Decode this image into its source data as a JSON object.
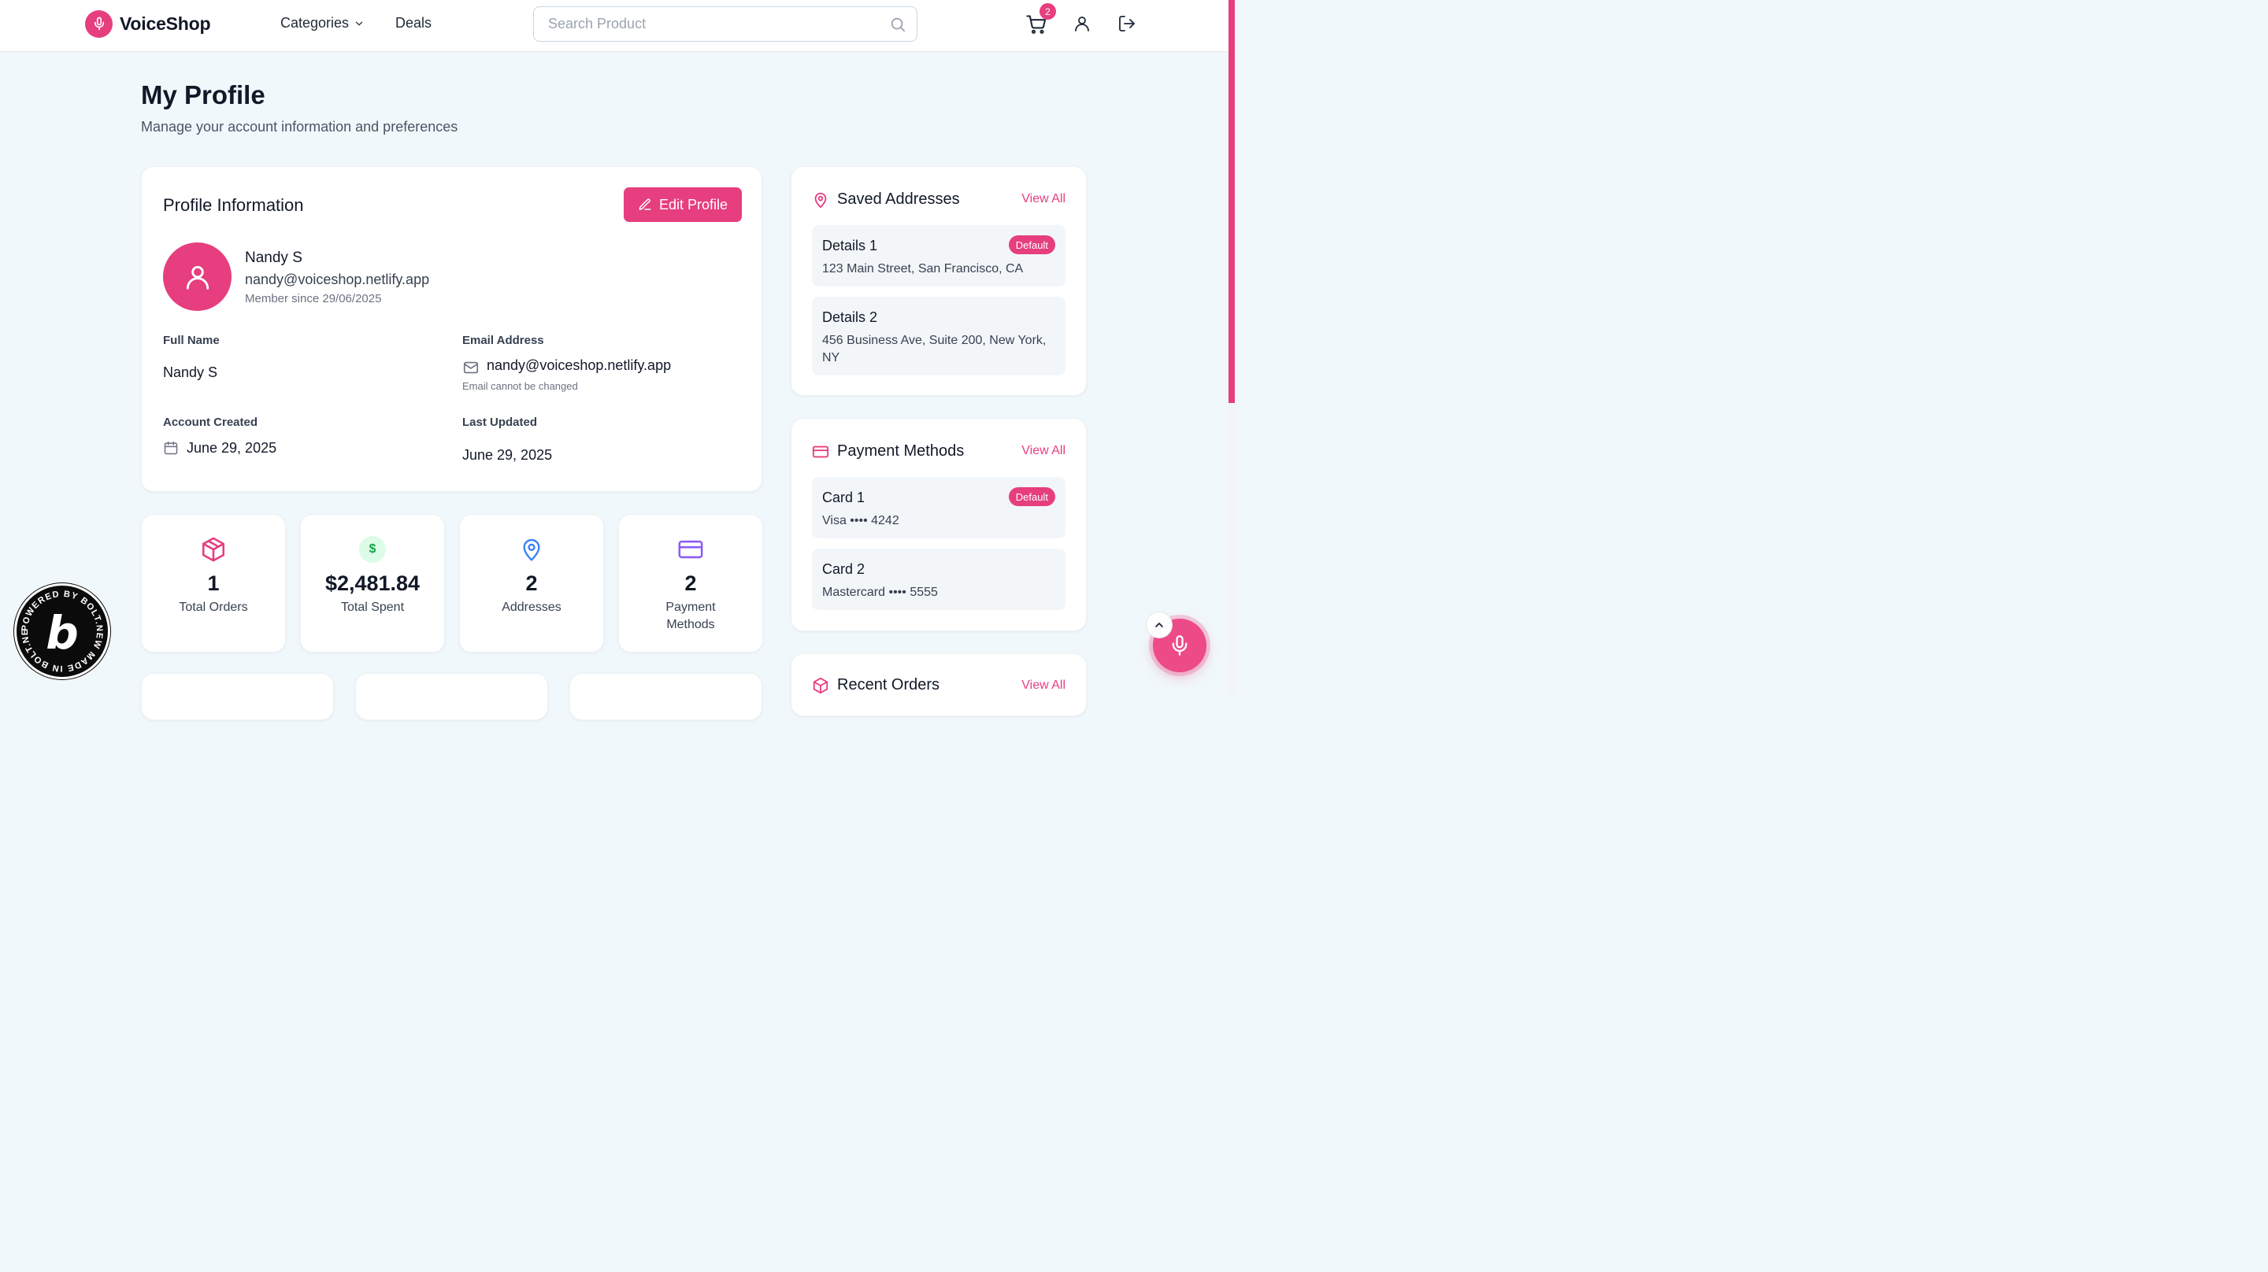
{
  "header": {
    "brand": "VoiceShop",
    "categories_label": "Categories",
    "deals_label": "Deals",
    "search_placeholder": "Search Product",
    "cart_count": "2"
  },
  "page": {
    "title": "My Profile",
    "subtitle": "Manage your account information and preferences"
  },
  "profile": {
    "section_title": "Profile Information",
    "edit_label": "Edit Profile",
    "name": "Nandy S",
    "email": "nandy@voiceshop.netlify.app",
    "member_since": "Member since 29/06/2025",
    "fields": {
      "full_name_label": "Full Name",
      "full_name_value": "Nandy S",
      "email_label": "Email Address",
      "email_value": "nandy@voiceshop.netlify.app",
      "email_note": "Email cannot be changed",
      "created_label": "Account Created",
      "created_value": "June 29, 2025",
      "updated_label": "Last Updated",
      "updated_value": "June 29, 2025"
    }
  },
  "stats": [
    {
      "value": "1",
      "label": "Total Orders",
      "icon": "box-icon"
    },
    {
      "value": "$2,481.84",
      "label": "Total Spent",
      "icon": "dollar-icon"
    },
    {
      "value": "2",
      "label": "Addresses",
      "icon": "map-pin-icon"
    },
    {
      "value": "2",
      "label": "Payment Methods",
      "icon": "credit-card-icon"
    }
  ],
  "addresses": {
    "title": "Saved Addresses",
    "view_all": "View All",
    "items": [
      {
        "title": "Details 1",
        "text": "123 Main Street, San Francisco, CA",
        "badge": "Default"
      },
      {
        "title": "Details 2",
        "text": "456 Business Ave, Suite 200, New York, NY"
      }
    ]
  },
  "payments": {
    "title": "Payment Methods",
    "view_all": "View All",
    "items": [
      {
        "title": "Card 1",
        "text": "Visa •••• 4242",
        "badge": "Default"
      },
      {
        "title": "Card 2",
        "text": "Mastercard •••• 5555"
      }
    ]
  },
  "orders": {
    "title": "Recent Orders",
    "view_all": "View All"
  },
  "colors": {
    "accent": "#e63e7f",
    "background": "#f0f8fc",
    "spent_green": "#16a34a",
    "address_blue": "#3b82f6",
    "payment_purple": "#8b5cf6"
  },
  "bolt_badge": {
    "text": "POWERED BY BOLT.NEW MADE IN BOLT.NEW",
    "letter": "b"
  }
}
